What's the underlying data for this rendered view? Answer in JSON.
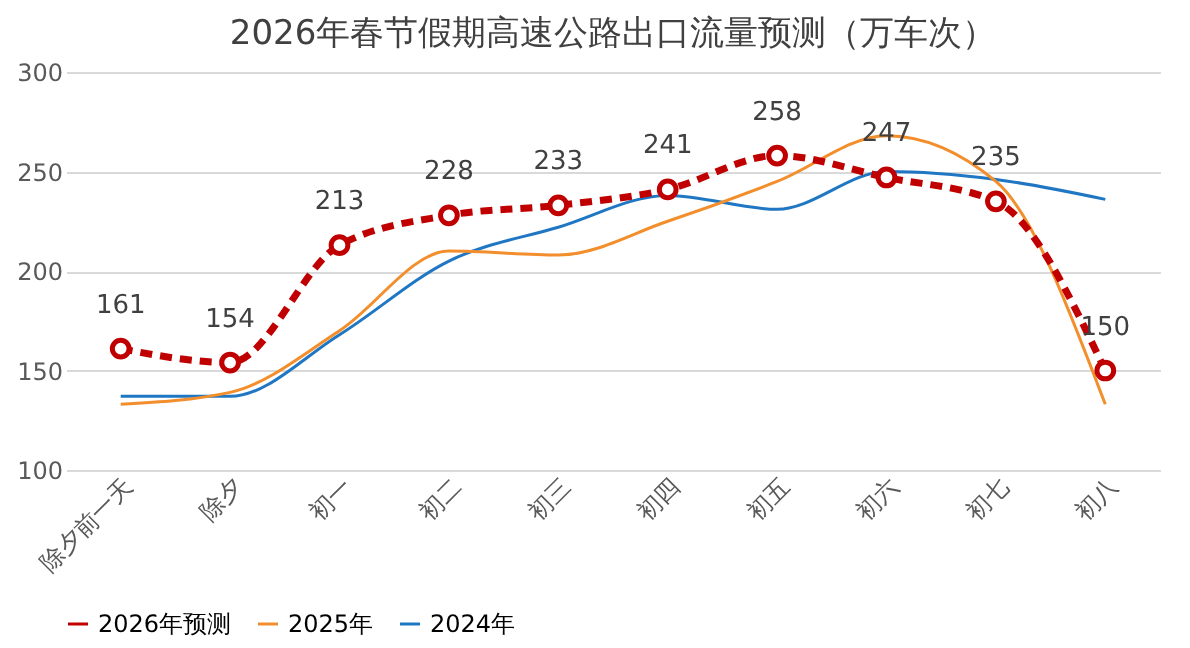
{
  "chart_data": {
    "type": "line",
    "title": "2026年春节假期高速公路出口流量预测（万车次）",
    "categories": [
      "除夕前一天",
      "除夕",
      "初一",
      "初二",
      "初三",
      "初四",
      "初五",
      "初六",
      "初七",
      "初八"
    ],
    "series": [
      {
        "name": "2026年预测",
        "color": "#c00000",
        "values": [
          161,
          154,
          213,
          228,
          233,
          241,
          258,
          247,
          235,
          150
        ],
        "marker": "circle",
        "line_style": "dashed",
        "value_labels": [
          "161",
          "154",
          "213",
          "228",
          "233",
          "241",
          "258",
          "247",
          "235",
          "150"
        ]
      },
      {
        "name": "2025年",
        "color": "#f28e2b",
        "values": [
          133,
          139,
          170,
          210,
          208,
          225,
          245,
          268,
          245,
          133
        ],
        "marker": "none",
        "line_style": "solid"
      },
      {
        "name": "2024年",
        "color": "#1f77c4",
        "values": [
          137,
          137,
          168,
          205,
          222,
          238,
          231,
          250,
          246,
          236
        ],
        "marker": "none",
        "line_style": "solid"
      }
    ],
    "ylim": [
      100,
      300
    ],
    "yticks": [
      100,
      150,
      200,
      250,
      300
    ],
    "grid": "y",
    "legend": "bottom"
  }
}
